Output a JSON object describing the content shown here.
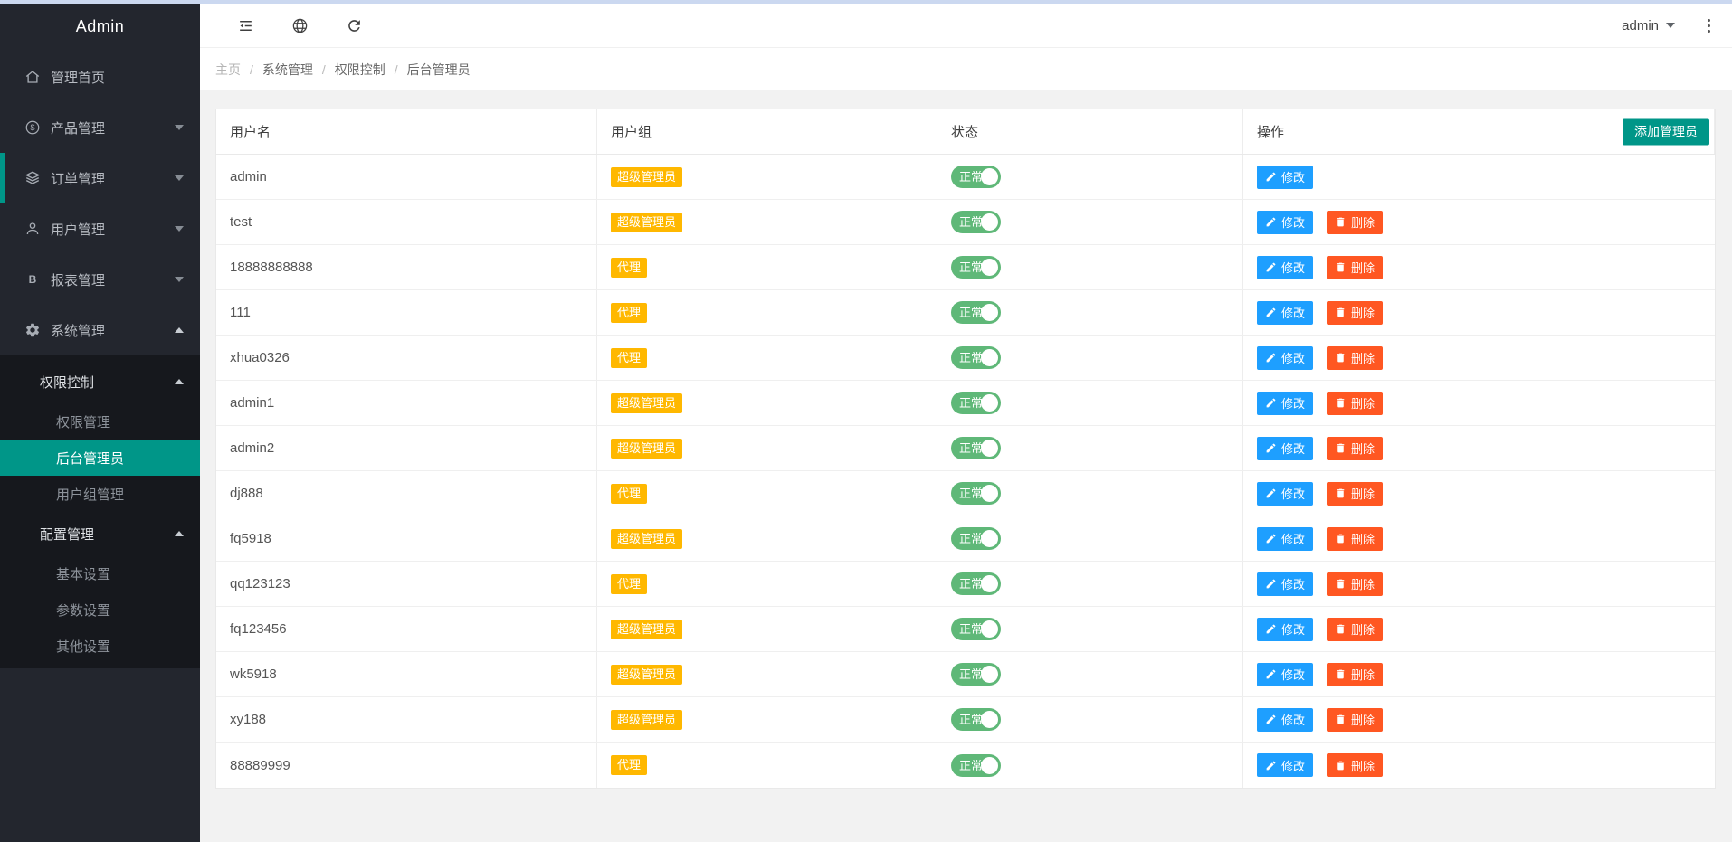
{
  "app_title": "Admin",
  "topbar": {
    "user_label": "admin",
    "icons": [
      "menu-fold-icon",
      "globe-icon",
      "refresh-icon"
    ]
  },
  "breadcrumb": [
    "主页",
    "系统管理",
    "权限控制",
    "后台管理员"
  ],
  "sidebar": {
    "menu": [
      {
        "name": "home",
        "label": "管理首页",
        "icon": "home-icon",
        "caret": null,
        "accent": false
      },
      {
        "name": "products",
        "label": "产品管理",
        "icon": "product-icon",
        "caret": "down",
        "accent": false
      },
      {
        "name": "orders",
        "label": "订单管理",
        "icon": "orders-icon",
        "caret": "down",
        "accent": true
      },
      {
        "name": "users",
        "label": "用户管理",
        "icon": "users-icon",
        "caret": "down",
        "accent": false
      },
      {
        "name": "reports",
        "label": "报表管理",
        "icon": "report-icon",
        "caret": "down",
        "accent": false
      },
      {
        "name": "system",
        "label": "系统管理",
        "icon": "gear-icon",
        "caret": "up",
        "accent": false
      }
    ],
    "submenu": [
      {
        "name": "permission-control",
        "label": "权限控制",
        "level": 1,
        "caret": "up",
        "active": false
      },
      {
        "name": "permission-manage",
        "label": "权限管理",
        "level": 2,
        "caret": null,
        "active": false
      },
      {
        "name": "backend-admins",
        "label": "后台管理员",
        "level": 2,
        "caret": null,
        "active": true
      },
      {
        "name": "user-group-manage",
        "label": "用户组管理",
        "level": 2,
        "caret": null,
        "active": false
      },
      {
        "name": "config-manage",
        "label": "配置管理",
        "level": 1,
        "caret": "up",
        "active": false
      },
      {
        "name": "basic-settings",
        "label": "基本设置",
        "level": 2,
        "caret": null,
        "active": false
      },
      {
        "name": "param-settings",
        "label": "参数设置",
        "level": 2,
        "caret": null,
        "active": false
      },
      {
        "name": "other-settings",
        "label": "其他设置",
        "level": 2,
        "caret": null,
        "active": false
      }
    ]
  },
  "table": {
    "columns": [
      "用户名",
      "用户组",
      "状态",
      "操作"
    ],
    "add_button_label": "添加管理员",
    "edit_label": "修改",
    "delete_label": "删除",
    "status_on_label": "正常",
    "rows": [
      {
        "username": "admin",
        "group": "超级管理员",
        "status": "正常",
        "can_delete": false
      },
      {
        "username": "test",
        "group": "超级管理员",
        "status": "正常",
        "can_delete": true
      },
      {
        "username": "18888888888",
        "group": "代理",
        "status": "正常",
        "can_delete": true
      },
      {
        "username": "111",
        "group": "代理",
        "status": "正常",
        "can_delete": true
      },
      {
        "username": "xhua0326",
        "group": "代理",
        "status": "正常",
        "can_delete": true
      },
      {
        "username": "admin1",
        "group": "超级管理员",
        "status": "正常",
        "can_delete": true
      },
      {
        "username": "admin2",
        "group": "超级管理员",
        "status": "正常",
        "can_delete": true
      },
      {
        "username": "dj888",
        "group": "代理",
        "status": "正常",
        "can_delete": true
      },
      {
        "username": "fq5918",
        "group": "超级管理员",
        "status": "正常",
        "can_delete": true
      },
      {
        "username": "qq123123",
        "group": "代理",
        "status": "正常",
        "can_delete": true
      },
      {
        "username": "fq123456",
        "group": "超级管理员",
        "status": "正常",
        "can_delete": true
      },
      {
        "username": "wk5918",
        "group": "超级管理员",
        "status": "正常",
        "can_delete": true
      },
      {
        "username": "xy188",
        "group": "超级管理员",
        "status": "正常",
        "can_delete": true
      },
      {
        "username": "88889999",
        "group": "代理",
        "status": "正常",
        "can_delete": true
      }
    ]
  },
  "colors": {
    "teal": "#009688",
    "orange": "#FFB800",
    "green": "#5FB878",
    "blue": "#1E9FFF",
    "red": "#FF5722",
    "top_strip": "#CBD8F0"
  }
}
